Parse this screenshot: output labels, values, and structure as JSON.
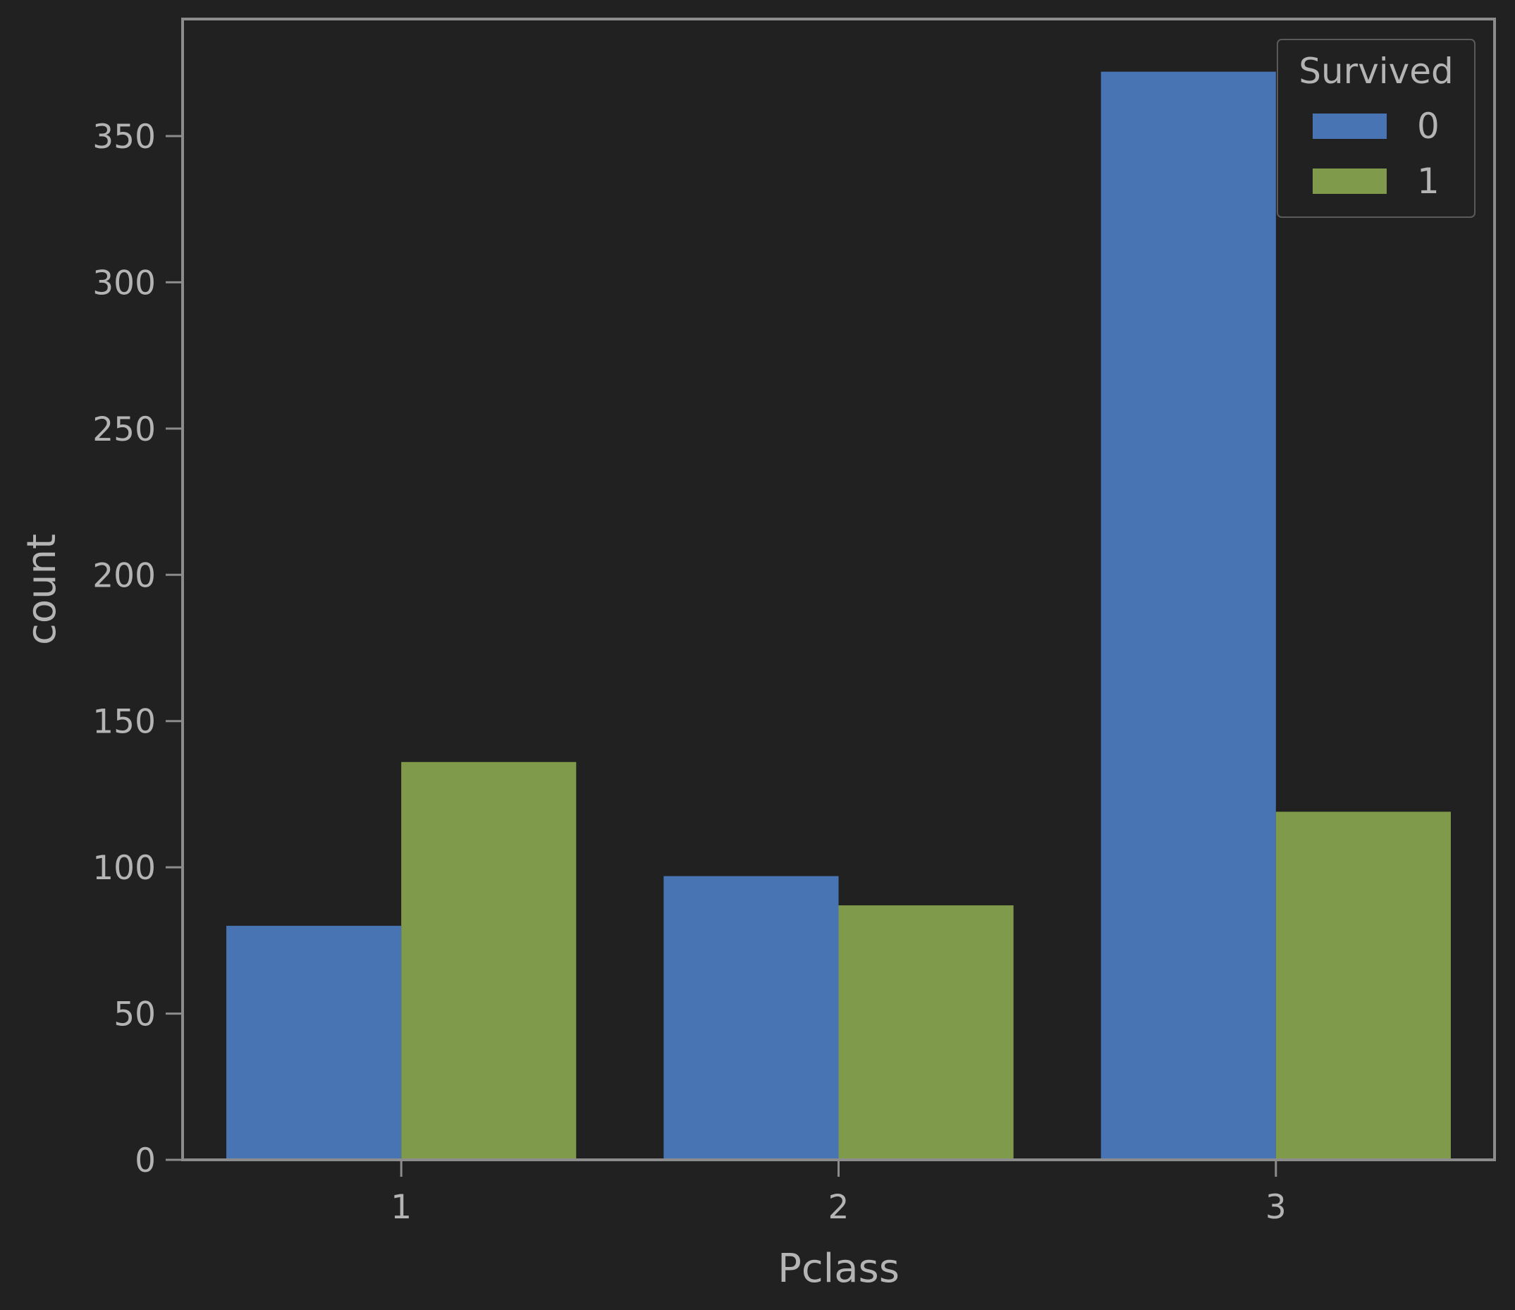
{
  "chart_data": {
    "type": "bar",
    "title": "",
    "xlabel": "Pclass",
    "ylabel": "count",
    "categories": [
      "1",
      "2",
      "3"
    ],
    "series": [
      {
        "name": "0",
        "values": [
          80,
          97,
          372
        ],
        "color": "#4874b3"
      },
      {
        "name": "1",
        "values": [
          136,
          87,
          119
        ],
        "color": "#7f9a4a"
      }
    ],
    "ylim": [
      0,
      390
    ],
    "yticks": [
      0,
      50,
      100,
      150,
      200,
      250,
      300,
      350
    ],
    "grid": false,
    "legend": {
      "title": "Survived",
      "placement": "top-right"
    },
    "colors": {
      "background": "#212121",
      "axes": "#8c8c8c",
      "text": "#b4b4b4"
    }
  }
}
